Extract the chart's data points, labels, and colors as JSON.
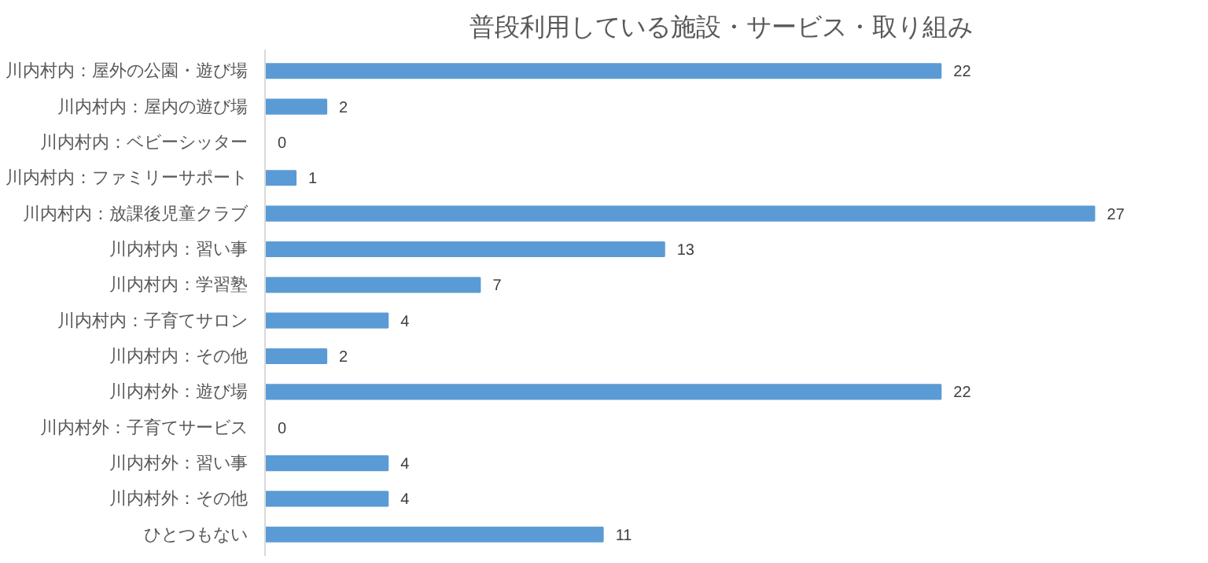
{
  "chart_data": {
    "type": "bar",
    "orientation": "horizontal",
    "title": "普段利用している施設・サービス・取り組み",
    "categories": [
      "川内村内：屋外の公園・遊び場",
      "川内村内：屋内の遊び場",
      "川内村内：ベビーシッター",
      "川内村内：ファミリーサポート",
      "川内村内：放課後児童クラブ",
      "川内村内：習い事",
      "川内村内：学習塾",
      "川内村内：子育てサロン",
      "川内村内：その他",
      "川内村外：遊び場",
      "川内村外：子育てサービス",
      "川内村外：習い事",
      "川内村外：その他",
      "ひとつもない"
    ],
    "values": [
      22,
      2,
      0,
      1,
      27,
      13,
      7,
      4,
      2,
      22,
      0,
      4,
      4,
      11
    ],
    "color": "#5b9bd5",
    "data_labels": true,
    "grid": false,
    "tick_labels": "y"
  }
}
